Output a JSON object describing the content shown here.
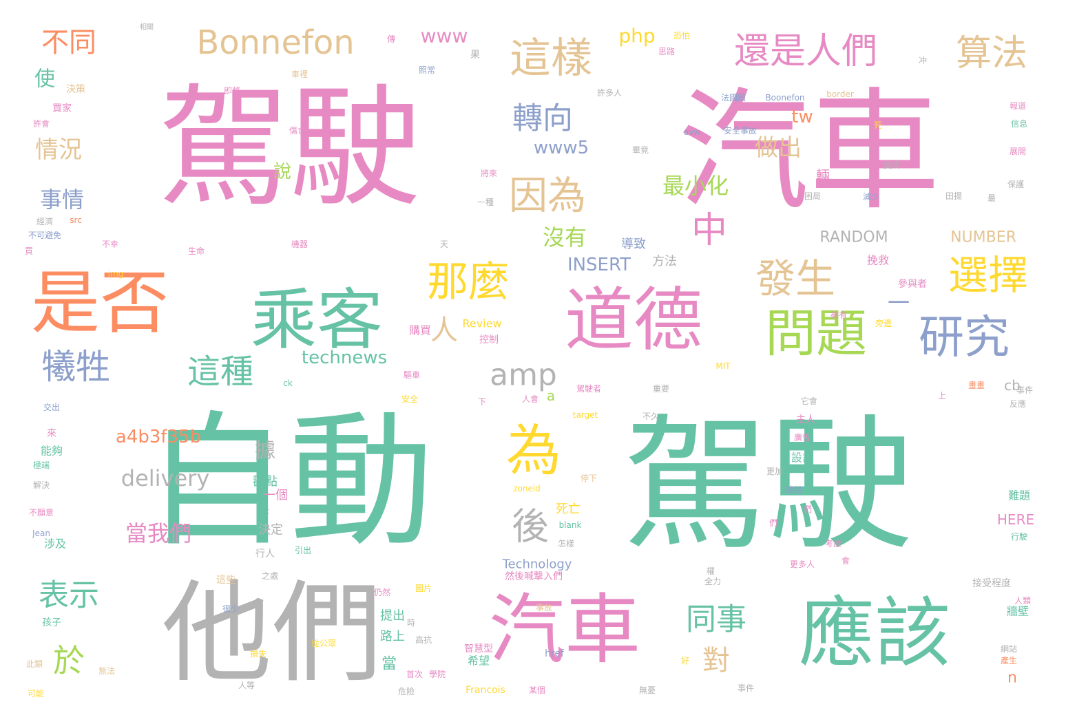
{
  "palette": {
    "pink": "#e78ac3",
    "green": "#66c2a5",
    "orange": "#fc8d62",
    "blue": "#8da0cb",
    "lime": "#a6d854",
    "yellow": "#ffd92f",
    "tan": "#e5c494",
    "gray": "#b3b3b3"
  },
  "words": [
    {
      "text": "駕駛",
      "color": "pink"
    },
    {
      "text": "汽車",
      "color": "pink"
    },
    {
      "text": "自動",
      "color": "green"
    },
    {
      "text": "駕駛",
      "color": "green"
    },
    {
      "text": "他們",
      "color": "gray"
    },
    {
      "text": "汽車",
      "color": "pink"
    },
    {
      "text": "應該",
      "color": "green"
    },
    {
      "text": "道德",
      "color": "pink"
    },
    {
      "text": "乘客",
      "color": "green"
    },
    {
      "text": "是否",
      "color": "orange"
    },
    {
      "text": "問題",
      "color": "lime"
    },
    {
      "text": "研究",
      "color": "blue"
    },
    {
      "text": "那麼",
      "color": "yellow"
    },
    {
      "text": "發生",
      "color": "tan"
    },
    {
      "text": "選擇",
      "color": "yellow"
    },
    {
      "text": "這樣",
      "color": "tan"
    },
    {
      "text": "還是人們",
      "color": "pink"
    },
    {
      "text": "算法",
      "color": "tan"
    },
    {
      "text": "Bonnefon",
      "color": "tan"
    },
    {
      "text": "因為",
      "color": "tan"
    },
    {
      "text": "轉向",
      "color": "blue"
    },
    {
      "text": "中",
      "color": "pink"
    },
    {
      "text": "為",
      "color": "yellow"
    },
    {
      "text": "後",
      "color": "gray"
    },
    {
      "text": "amp",
      "color": "gray"
    },
    {
      "text": "犧牲",
      "color": "blue"
    },
    {
      "text": "這種",
      "color": "green"
    },
    {
      "text": "於",
      "color": "lime"
    },
    {
      "text": "表示",
      "color": "green"
    },
    {
      "text": "同事",
      "color": "green"
    },
    {
      "text": "對",
      "color": "tan"
    },
    {
      "text": "人",
      "color": "tan"
    },
    {
      "text": "一",
      "color": "blue"
    },
    {
      "text": "不同",
      "color": "orange"
    },
    {
      "text": "使",
      "color": "green"
    },
    {
      "text": "情況",
      "color": "tan"
    },
    {
      "text": "事情",
      "color": "blue"
    },
    {
      "text": "做出",
      "color": "tan"
    },
    {
      "text": "最小化",
      "color": "lime"
    },
    {
      "text": "沒有",
      "color": "lime"
    },
    {
      "text": "www5",
      "color": "blue"
    },
    {
      "text": "www",
      "color": "pink"
    },
    {
      "text": "php",
      "color": "yellow"
    },
    {
      "text": "tw",
      "color": "orange"
    },
    {
      "text": "說",
      "color": "lime"
    },
    {
      "text": "輛",
      "color": "pink"
    },
    {
      "text": "a4b3f35b",
      "color": "orange"
    },
    {
      "text": "delivery",
      "color": "gray"
    },
    {
      "text": "當我們",
      "color": "pink"
    },
    {
      "text": "據",
      "color": "gray"
    },
    {
      "text": "technews",
      "color": "green"
    },
    {
      "text": "INSERT",
      "color": "blue"
    },
    {
      "text": "RANDOM",
      "color": "gray"
    },
    {
      "text": "NUMBER",
      "color": "tan"
    },
    {
      "text": "HERE",
      "color": "pink"
    },
    {
      "text": "cb",
      "color": "gray"
    },
    {
      "text": "a",
      "color": "lime"
    },
    {
      "text": "n",
      "color": "orange"
    },
    {
      "text": "當",
      "color": "green"
    },
    {
      "text": "死亡",
      "color": "yellow"
    },
    {
      "text": "決定",
      "color": "gray"
    },
    {
      "text": "一個",
      "color": "pink"
    },
    {
      "text": "Technology",
      "color": "blue"
    },
    {
      "text": "方法",
      "color": "gray"
    },
    {
      "text": "導致",
      "color": "blue"
    },
    {
      "text": "提出",
      "color": "green"
    },
    {
      "text": "路上",
      "color": "green"
    },
    {
      "text": "希望",
      "color": "green"
    },
    {
      "text": "購買",
      "color": "pink"
    },
    {
      "text": "Review",
      "color": "yellow"
    },
    {
      "text": "控制",
      "color": "pink"
    },
    {
      "text": "挽救",
      "color": "pink"
    },
    {
      "text": "參與者",
      "color": "pink"
    },
    {
      "text": "觀點",
      "color": "green"
    },
    {
      "text": "能夠",
      "color": "green"
    },
    {
      "text": "來",
      "color": "pink"
    },
    {
      "text": "涉及",
      "color": "green"
    },
    {
      "text": "行人",
      "color": "gray"
    },
    {
      "text": "設計",
      "color": "green"
    },
    {
      "text": "主人",
      "color": "pink"
    },
    {
      "text": "難題",
      "color": "green"
    },
    {
      "text": "牆壁",
      "color": "green"
    },
    {
      "text": "相關",
      "color": "gray"
    },
    {
      "text": "即將",
      "color": "pink"
    },
    {
      "text": "果",
      "color": "gray"
    },
    {
      "text": "恐怕",
      "color": "yellow"
    },
    {
      "text": "決策",
      "color": "tan"
    },
    {
      "text": "買家",
      "color": "pink"
    },
    {
      "text": "車裡",
      "color": "tan"
    },
    {
      "text": "許多人",
      "color": "gray"
    },
    {
      "text": "法國圖",
      "color": "blue"
    },
    {
      "text": "Boonefon",
      "color": "blue"
    },
    {
      "text": "border",
      "color": "tan"
    },
    {
      "text": "安全事故",
      "color": "blue"
    },
    {
      "text": "avw",
      "color": "blue"
    },
    {
      "text": "src",
      "color": "orange"
    },
    {
      "text": "經濟",
      "color": "gray"
    },
    {
      "text": "不可避免",
      "color": "blue"
    },
    {
      "text": "img",
      "color": "yellow"
    },
    {
      "text": "ck",
      "color": "green"
    },
    {
      "text": "交出",
      "color": "blue"
    },
    {
      "text": "解決",
      "color": "gray"
    },
    {
      "text": "極端",
      "color": "green"
    },
    {
      "text": "不願意",
      "color": "pink"
    },
    {
      "text": "Jean",
      "color": "blue"
    },
    {
      "text": "孩子",
      "color": "green"
    },
    {
      "text": "此類",
      "color": "tan"
    },
    {
      "text": "可能",
      "color": "yellow"
    },
    {
      "text": "無法",
      "color": "tan"
    },
    {
      "text": "這些",
      "color": "tan"
    },
    {
      "text": "很少",
      "color": "blue"
    },
    {
      "text": "之處",
      "color": "gray"
    },
    {
      "text": "引出",
      "color": "green"
    },
    {
      "text": "alt",
      "color": "green"
    },
    {
      "text": "blank",
      "color": "green"
    },
    {
      "text": "怎樣",
      "color": "gray"
    },
    {
      "text": "zoneid",
      "color": "yellow"
    },
    {
      "text": "停下",
      "color": "tan"
    },
    {
      "text": "target",
      "color": "yellow"
    },
    {
      "text": "不久",
      "color": "gray"
    },
    {
      "text": "安全",
      "color": "yellow"
    },
    {
      "text": "下",
      "color": "pink"
    },
    {
      "text": "人會",
      "color": "pink"
    },
    {
      "text": "駕駛者",
      "color": "pink"
    },
    {
      "text": "重要",
      "color": "gray"
    },
    {
      "text": "MIT",
      "color": "yellow"
    },
    {
      "text": "更加",
      "color": "gray"
    },
    {
      "text": "隨機",
      "color": "blue"
    },
    {
      "text": "它會",
      "color": "gray"
    },
    {
      "text": "廣告",
      "color": "pink"
    },
    {
      "text": "上",
      "color": "pink"
    },
    {
      "text": "事件",
      "color": "gray"
    },
    {
      "text": "反應",
      "color": "gray"
    },
    {
      "text": "更多人",
      "color": "pink"
    },
    {
      "text": "接受程度",
      "color": "gray"
    },
    {
      "text": "人類",
      "color": "pink"
    },
    {
      "text": "網站",
      "color": "gray"
    },
    {
      "text": "產生",
      "color": "orange"
    },
    {
      "text": "行駛",
      "color": "green"
    },
    {
      "text": "智慧型",
      "color": "pink"
    },
    {
      "text": "學院",
      "color": "pink"
    },
    {
      "text": "Francois",
      "color": "yellow"
    },
    {
      "text": "某個",
      "color": "pink"
    },
    {
      "text": "無憂",
      "color": "gray"
    },
    {
      "text": "高抗",
      "color": "gray"
    },
    {
      "text": "危險",
      "color": "gray"
    },
    {
      "text": "事故",
      "color": "tan"
    },
    {
      "text": "href",
      "color": "blue"
    },
    {
      "text": "全力",
      "color": "gray"
    },
    {
      "text": "然後喊撃入們",
      "color": "pink"
    },
    {
      "text": "圖片",
      "color": "yellow"
    },
    {
      "text": "仍然",
      "color": "pink"
    },
    {
      "text": "損失",
      "color": "yellow"
    },
    {
      "text": "人等",
      "color": "gray"
    },
    {
      "text": "從公眾",
      "color": "yellow"
    },
    {
      "text": "變成",
      "color": "gray"
    },
    {
      "text": "減少",
      "color": "blue"
    },
    {
      "text": "保護",
      "color": "gray"
    },
    {
      "text": "報道",
      "color": "pink"
    },
    {
      "text": "信息",
      "color": "green"
    },
    {
      "text": "展開",
      "color": "pink"
    },
    {
      "text": "將來",
      "color": "pink"
    },
    {
      "text": "一種",
      "color": "gray"
    },
    {
      "text": "困局",
      "color": "gray"
    },
    {
      "text": "生命",
      "color": "pink"
    },
    {
      "text": "機器",
      "color": "pink"
    },
    {
      "text": "畢竟",
      "color": "gray"
    },
    {
      "text": "許會",
      "color": "pink"
    },
    {
      "text": "傷亡",
      "color": "pink"
    },
    {
      "text": "買",
      "color": "pink"
    },
    {
      "text": "不幸",
      "color": "pink"
    },
    {
      "text": "天",
      "color": "gray"
    },
    {
      "text": "死",
      "color": "yellow"
    },
    {
      "text": "冲",
      "color": "gray"
    },
    {
      "text": "思路",
      "color": "pink"
    },
    {
      "text": "傳",
      "color": "pink"
    },
    {
      "text": "照常",
      "color": "blue"
    },
    {
      "text": "驅車",
      "color": "pink"
    },
    {
      "text": "們",
      "color": "pink"
    },
    {
      "text": "考慮",
      "color": "pink"
    },
    {
      "text": "們",
      "color": "pink"
    },
    {
      "text": "會",
      "color": "pink"
    },
    {
      "text": "旁邊",
      "color": "yellow"
    },
    {
      "text": "擁有",
      "color": "pink"
    },
    {
      "text": "畫畫",
      "color": "orange"
    },
    {
      "text": "事件",
      "color": "gray"
    },
    {
      "text": "好",
      "color": "yellow"
    },
    {
      "text": "首次",
      "color": "pink"
    },
    {
      "text": "時",
      "color": "gray"
    },
    {
      "text": "權",
      "color": "gray"
    },
    {
      "text": "田揚",
      "color": "gray"
    },
    {
      "text": "最",
      "color": "gray"
    },
    {
      "text": "追求",
      "color": "orange"
    },
    {
      "text": "值得",
      "color": "green"
    }
  ]
}
